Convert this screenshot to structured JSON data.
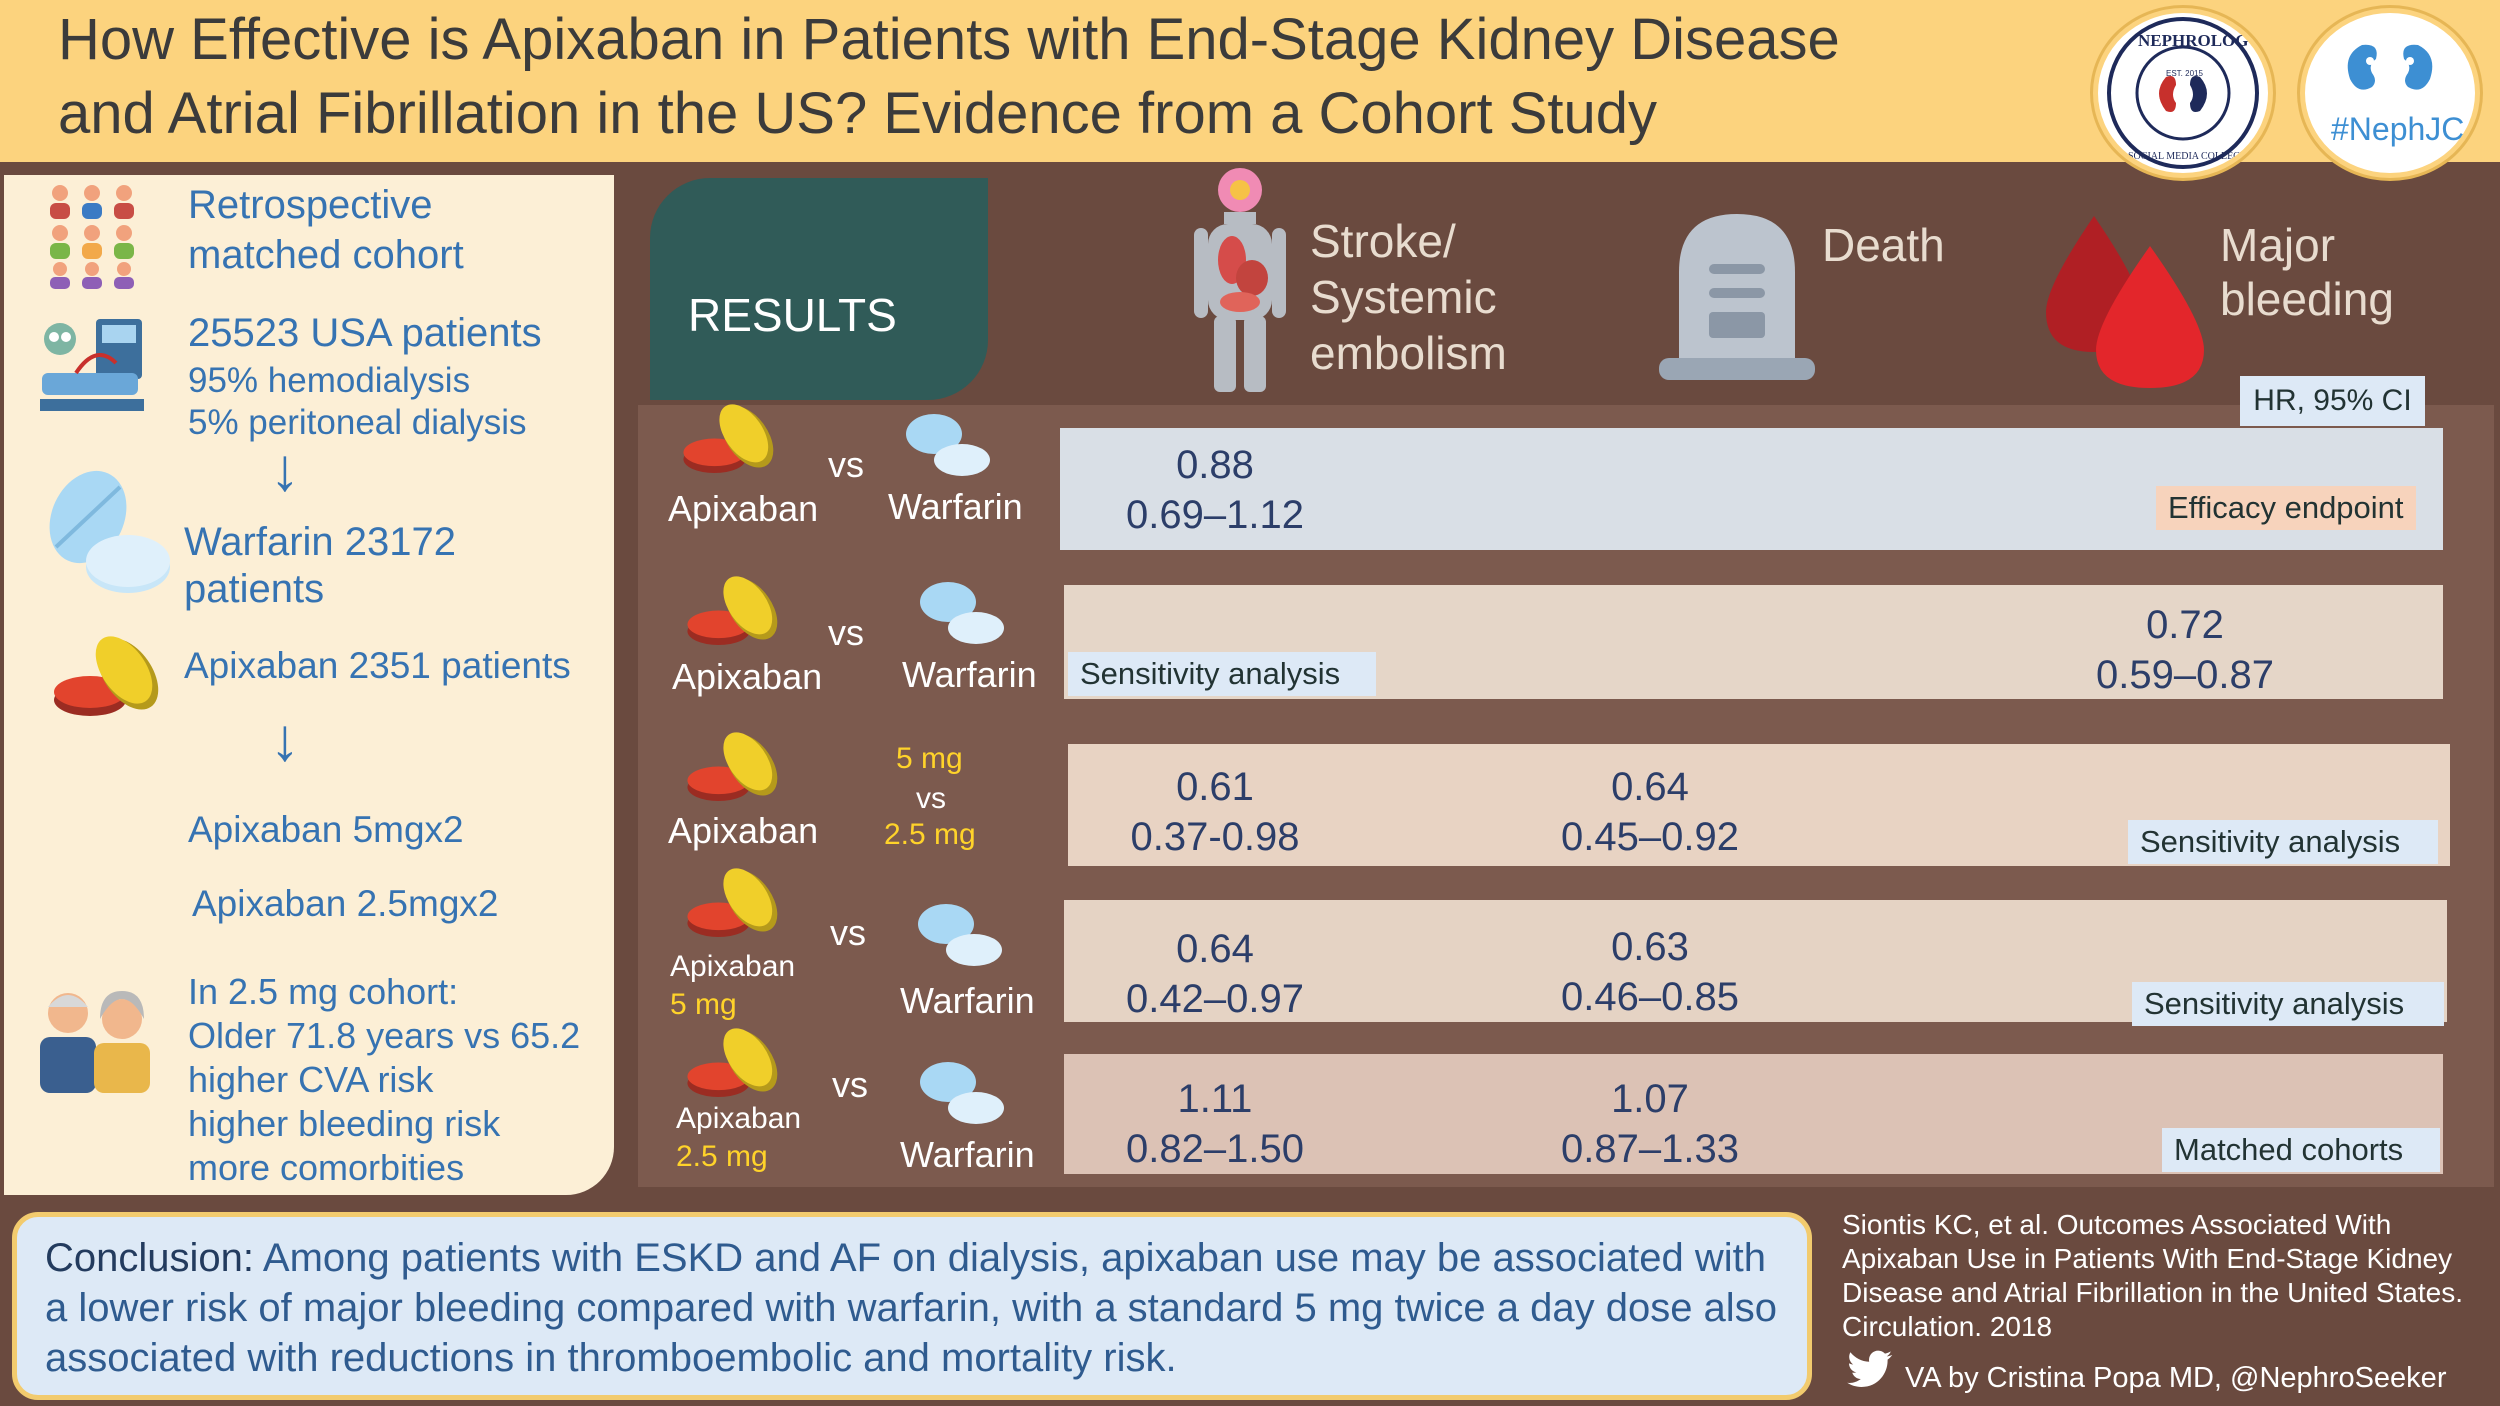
{
  "header": {
    "title_line1": "How Effective is Apixaban in Patients with End-Stage Kidney Disease",
    "title_line2": "and Atrial Fibrillation in the US? Evidence from a Cohort Study",
    "badge_nephrology": "NEPHROLOGY",
    "badge_nephrology_sub": "SOCIAL MEDIA COLLECTIVE",
    "badge_nephrology_est": "EST. 2015",
    "badge_nephjc": "#NephJC"
  },
  "left_panel": {
    "cohort_type_1": "Retrospective",
    "cohort_type_2": "matched cohort",
    "patients": "25523 USA patients",
    "hemodialysis": "95% hemodialysis",
    "peritoneal": "5% peritoneal dialysis",
    "warfarin_label": "Warfarin",
    "warfarin_count": " 23172",
    "warfarin_unit": "patients",
    "apixaban_label": "Apixaban",
    "apixaban_count": " 2351 patients",
    "apix_5": "Apixaban 5mgx2",
    "apix_25": "Apixaban 2.5mgx2",
    "subgroup_lines": [
      "In 2.5 mg cohort:",
      "Older 71.8 years vs 65.2",
      "higher CVA risk",
      "higher bleeding risk",
      "more comorbities"
    ]
  },
  "results": {
    "tab_label": "RESULTS",
    "columns": {
      "stroke": [
        "Stroke/",
        "Systemic",
        "embolism"
      ],
      "death": "Death",
      "bleeding": [
        "Major",
        "bleeding"
      ]
    },
    "hr_label": "HR, 95% CI",
    "rows": [
      {
        "left": "Apixaban",
        "vs": "vs",
        "right": "Warfarin",
        "stroke_hr": "0.88",
        "stroke_ci": "0.69–1.12",
        "tag": "Efficacy endpoint"
      },
      {
        "left": "Apixaban",
        "vs": "vs",
        "right": "Warfarin",
        "bleed_hr": "0.72",
        "bleed_ci": "0.59–0.87",
        "tag": "Sensitivity analysis"
      },
      {
        "left": "Apixaban",
        "dose_a": "5 mg",
        "vs": "vs",
        "dose_b": "2.5 mg",
        "stroke_hr": "0.61",
        "stroke_ci": "0.37-0.98",
        "death_hr": "0.64",
        "death_ci": "0.45–0.92",
        "tag": "Sensitivity analysis"
      },
      {
        "left": "Apixaban",
        "left_dose": "5 mg",
        "vs": "vs",
        "right": "Warfarin",
        "stroke_hr": "0.64",
        "stroke_ci": "0.42–0.97",
        "death_hr": "0.63",
        "death_ci": "0.46–0.85",
        "tag": "Sensitivity analysis"
      },
      {
        "left": "Apixaban",
        "left_dose": "2.5 mg",
        "vs": "vs",
        "right": "Warfarin",
        "stroke_hr": "1.11",
        "stroke_ci": "0.82–1.50",
        "death_hr": "1.07",
        "death_ci": "0.87–1.33",
        "tag": "Matched cohorts"
      }
    ]
  },
  "conclusion": {
    "lead": "Conclusion:",
    "text": " Among patients with ESKD and AF on dialysis, apixaban use may be associated with a lower risk of major bleeding compared with warfarin, with a standard 5 mg twice a day dose also associated with reductions in thromboembolic and mortality risk."
  },
  "reference": "Siontis KC, et al. Outcomes Associated With Apixaban Use in Patients With End-Stage Kidney Disease and Atrial Fibrillation in the United States. Circulation. 2018",
  "credit": "VA by Cristina Popa MD, @NephroSeeker",
  "colors": {
    "header_bg": "#fcd37e",
    "page_bg": "#6a4a3f",
    "text_blue": "#3673b2",
    "results_tab": "#305b58",
    "dose_yellow": "#ffd32a"
  },
  "icons": [
    "people-group-icon",
    "dialysis-patient-icon",
    "warfarin-pill-icon",
    "apixaban-pill-icon",
    "elderly-couple-icon",
    "body-organs-icon",
    "tombstone-icon",
    "blood-drops-icon",
    "kidney-icon",
    "twitter-bird-icon"
  ]
}
